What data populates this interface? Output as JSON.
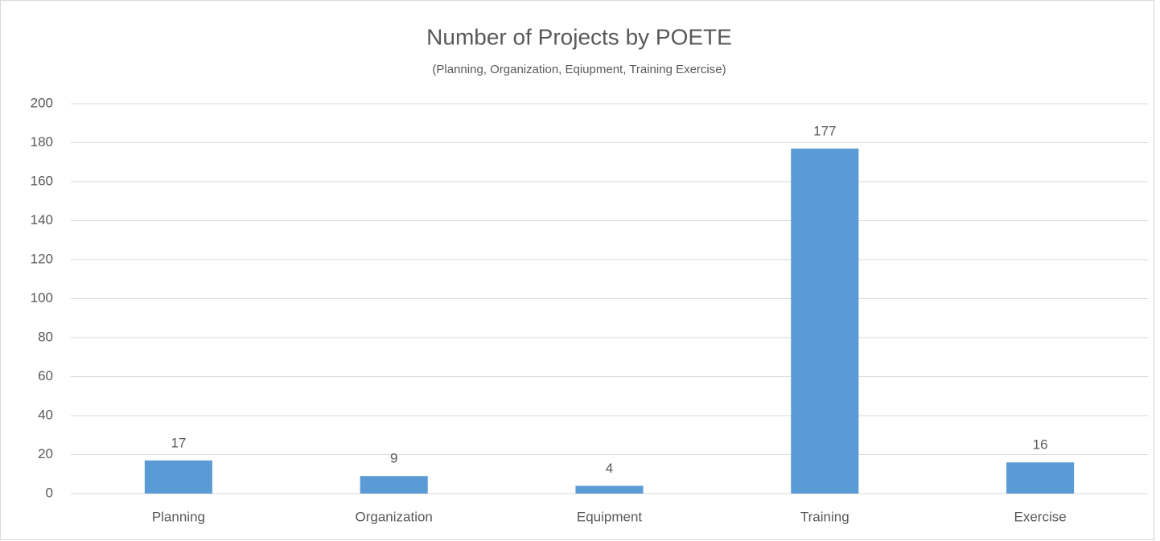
{
  "chart_data": {
    "type": "bar",
    "title": "Number of Projects by POETE",
    "subtitle": "(Planning, Organization, Eqiupment, Training Exercise)",
    "categories": [
      "Planning",
      "Organization",
      "Equipment",
      "Training",
      "Exercise"
    ],
    "values": [
      17,
      9,
      4,
      177,
      16
    ],
    "color": "#5b9bd5",
    "ylim": [
      0,
      200
    ],
    "yticks": [
      0,
      20,
      40,
      60,
      80,
      100,
      120,
      140,
      160,
      180,
      200
    ],
    "grid": true,
    "data_labels": true
  }
}
